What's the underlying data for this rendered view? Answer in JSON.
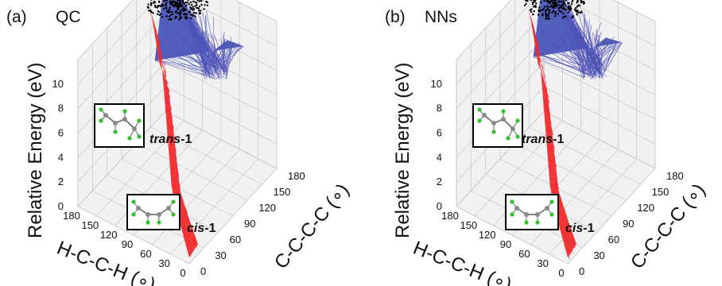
{
  "colors": {
    "trans_surface": "#4a56b8",
    "trans_edge": "#6a45b0",
    "cis_surface": "#f02c2c",
    "cis_edge": "#d0207a",
    "points": "#000000",
    "molecule_carbon": "#8a8a8a",
    "molecule_hydrogen": "#2fc22f",
    "grid": "#c8c8c8",
    "pane": "#f1f1f1"
  },
  "panels": [
    {
      "panel_label": "(a)",
      "method": "QC",
      "inset_trans_label": "trans",
      "inset_trans_suffix": "-1",
      "inset_cis_label": "cis",
      "inset_cis_suffix": "-1"
    },
    {
      "panel_label": "(b)",
      "method": "NNs",
      "inset_trans_label": "trans",
      "inset_trans_suffix": "-1",
      "inset_cis_label": "cis",
      "inset_cis_suffix": "-1"
    }
  ],
  "chart_data": [
    {
      "type": "scatter",
      "projection": "3d",
      "grid": true,
      "zlabel": "Relative Energy (eV)",
      "xlabel": "H-C-C-H (∘)",
      "ylabel": "C-C-C-C (∘)",
      "x_ticks": [
        "180",
        "150",
        "120",
        "90",
        "60",
        "30",
        "0"
      ],
      "y_ticks": [
        "0",
        "30",
        "60",
        "90",
        "120",
        "150",
        "180"
      ],
      "z_ticks": [
        "0",
        "2",
        "4",
        "6",
        "8",
        "10"
      ],
      "xlim": [
        0,
        180
      ],
      "ylim": [
        0,
        180
      ],
      "zlim": [
        0,
        12
      ],
      "series": [
        {
          "name": "trans-1",
          "values": [
            [
              180,
              180,
              11.5
            ],
            [
              150,
              170,
              10.5
            ],
            [
              120,
              165,
              9
            ],
            [
              90,
              160,
              8
            ],
            [
              60,
              155,
              10
            ],
            [
              30,
              150,
              10.5
            ],
            [
              150,
              120,
              7.5
            ]
          ]
        },
        {
          "name": "cis-1",
          "values": [
            [
              0,
              0,
              0.5
            ],
            [
              30,
              20,
              1.5
            ],
            [
              60,
              40,
              3
            ],
            [
              90,
              70,
              5
            ],
            [
              120,
              100,
              7
            ],
            [
              150,
              130,
              8.5
            ],
            [
              180,
              150,
              9.5
            ]
          ]
        }
      ]
    },
    {
      "type": "scatter",
      "projection": "3d",
      "grid": true,
      "zlabel": "Relative Energy (eV)",
      "xlabel": "H-C-C-H (∘)",
      "ylabel": "C-C-C-C (∘)",
      "x_ticks": [
        "180",
        "150",
        "120",
        "90",
        "60",
        "30",
        "0"
      ],
      "y_ticks": [
        "0",
        "30",
        "60",
        "90",
        "120",
        "150",
        "180"
      ],
      "z_ticks": [
        "0",
        "2",
        "4",
        "6",
        "8",
        "10"
      ],
      "xlim": [
        0,
        180
      ],
      "ylim": [
        0,
        180
      ],
      "zlim": [
        0,
        12
      ],
      "series": [
        {
          "name": "trans-1",
          "values": [
            [
              180,
              180,
              11.8
            ],
            [
              150,
              170,
              10.8
            ],
            [
              120,
              165,
              9.2
            ],
            [
              90,
              160,
              8.2
            ],
            [
              60,
              155,
              10.2
            ],
            [
              30,
              150,
              10.8
            ],
            [
              150,
              120,
              7.8
            ]
          ]
        },
        {
          "name": "cis-1",
          "values": [
            [
              0,
              0,
              0.5
            ],
            [
              30,
              20,
              1.5
            ],
            [
              60,
              40,
              3
            ],
            [
              90,
              70,
              5
            ],
            [
              120,
              100,
              7
            ],
            [
              150,
              130,
              8.5
            ],
            [
              180,
              150,
              9.5
            ]
          ]
        }
      ]
    }
  ]
}
